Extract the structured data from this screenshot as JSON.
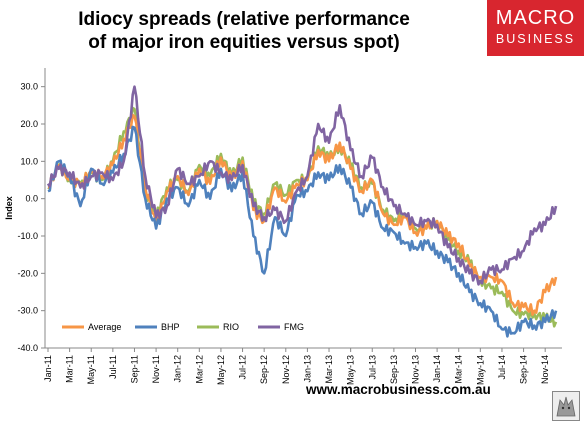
{
  "title_line1": "Idiocy spreads (relative performance",
  "title_line2": "of major iron equities versus spot)",
  "logo": {
    "line1": "MACRO",
    "line2": "BUSINESS",
    "color": "#d8262f"
  },
  "footer_url": "www.macrobusiness.com.au",
  "chart_data": {
    "type": "line",
    "title": "Idiocy spreads (relative performance of major iron equities versus spot)",
    "ylabel": "Index",
    "xlabel": "",
    "ylim": [
      -40,
      35
    ],
    "yticks": [
      "30.0",
      "20.0",
      "10.0",
      "0.0",
      "-10.0",
      "-20.0",
      "-30.0",
      "-40.0"
    ],
    "ytick_values": [
      30,
      20,
      10,
      0,
      -10,
      -20,
      -30,
      -40
    ],
    "categories": [
      "Jan-11",
      "Mar-11",
      "May-11",
      "Jul-11",
      "Sep-11",
      "Nov-11",
      "Jan-12",
      "Mar-12",
      "May-12",
      "Jul-12",
      "Sep-12",
      "Nov-12",
      "Jan-13",
      "Mar-13",
      "May-13",
      "Jul-13",
      "Sep-13",
      "Nov-13",
      "Jan-14",
      "Mar-14",
      "May-14",
      "Jul-14",
      "Sep-14",
      "Nov-14"
    ],
    "grid": false,
    "legend_position": "bottom-left",
    "x_range_months": [
      0,
      47
    ],
    "series": [
      {
        "name": "Average",
        "color": "#f79646",
        "x": [
          0,
          1,
          2,
          3,
          4,
          5,
          6,
          7,
          8,
          9,
          10,
          11,
          12,
          13,
          14,
          15,
          16,
          17,
          18,
          19,
          20,
          21,
          22,
          23,
          24,
          25,
          26,
          27,
          28,
          29,
          30,
          31,
          32,
          33,
          34,
          35,
          36,
          37,
          38,
          39,
          40,
          41,
          42,
          43,
          44,
          45,
          46,
          47
        ],
        "values": [
          3,
          9,
          5,
          4,
          7,
          6,
          9,
          16,
          22,
          3,
          -7,
          2,
          6,
          1,
          8,
          4,
          11,
          5,
          10,
          -3,
          -6,
          3,
          -1,
          4,
          5,
          13,
          10,
          15,
          8,
          2,
          5,
          -4,
          -7,
          -5,
          -9,
          -8,
          -6,
          -10,
          -12,
          -18,
          -21,
          -21,
          -22,
          -28,
          -29,
          -30,
          -25,
          -21
        ]
      },
      {
        "name": "BHP",
        "color": "#4f81bd",
        "x": [
          0,
          1,
          2,
          3,
          4,
          5,
          6,
          7,
          8,
          9,
          10,
          11,
          12,
          13,
          14,
          15,
          16,
          17,
          18,
          19,
          20,
          21,
          22,
          23,
          24,
          25,
          26,
          27,
          28,
          29,
          30,
          31,
          32,
          33,
          34,
          35,
          36,
          37,
          38,
          39,
          40,
          41,
          42,
          43,
          44,
          45,
          46,
          47
        ],
        "values": [
          2,
          10,
          6,
          -2,
          8,
          4,
          7,
          12,
          19,
          0,
          -8,
          0,
          3,
          -2,
          5,
          0,
          8,
          2,
          7,
          -10,
          -20,
          -5,
          -10,
          1,
          2,
          7,
          5,
          9,
          3,
          -4,
          -1,
          -8,
          -9,
          -12,
          -13,
          -12,
          -14,
          -17,
          -20,
          -25,
          -28,
          -30,
          -35,
          -36,
          -33,
          -34,
          -33,
          -30
        ]
      },
      {
        "name": "RIO",
        "color": "#9bbb59",
        "x": [
          0,
          1,
          2,
          3,
          4,
          5,
          6,
          7,
          8,
          9,
          10,
          11,
          12,
          13,
          14,
          15,
          16,
          17,
          18,
          19,
          20,
          21,
          22,
          23,
          24,
          25,
          26,
          27,
          28,
          29,
          30,
          31,
          32,
          33,
          34,
          35,
          36,
          37,
          38,
          39,
          40,
          41,
          42,
          43,
          44,
          45,
          46,
          47
        ],
        "values": [
          3,
          9,
          5,
          4,
          7,
          5,
          10,
          18,
          24,
          2,
          -5,
          3,
          5,
          2,
          9,
          6,
          12,
          6,
          11,
          -1,
          -4,
          4,
          1,
          5,
          5,
          14,
          11,
          14,
          9,
          3,
          4,
          -3,
          -6,
          -4,
          -8,
          -8,
          -6,
          -11,
          -14,
          -17,
          -22,
          -24,
          -25,
          -30,
          -31,
          -31,
          -32,
          -33
        ]
      },
      {
        "name": "FMG",
        "color": "#8064a2",
        "x": [
          0,
          1,
          2,
          3,
          4,
          5,
          6,
          7,
          8,
          9,
          10,
          11,
          12,
          13,
          14,
          15,
          16,
          17,
          18,
          19,
          20,
          21,
          22,
          23,
          24,
          25,
          26,
          27,
          28,
          29,
          30,
          31,
          32,
          33,
          34,
          35,
          36,
          37,
          38,
          39,
          40,
          41,
          42,
          43,
          44,
          45,
          46,
          47
        ],
        "values": [
          4,
          8,
          7,
          3,
          6,
          7,
          5,
          10,
          30,
          6,
          -5,
          -2,
          8,
          4,
          6,
          10,
          7,
          5,
          9,
          -2,
          -5,
          -3,
          -6,
          2,
          6,
          20,
          15,
          25,
          13,
          6,
          11,
          3,
          -2,
          -4,
          -7,
          -6,
          -7,
          -13,
          -16,
          -20,
          -22,
          -19,
          -19,
          -16,
          -14,
          -8,
          -7,
          -2
        ]
      }
    ]
  }
}
